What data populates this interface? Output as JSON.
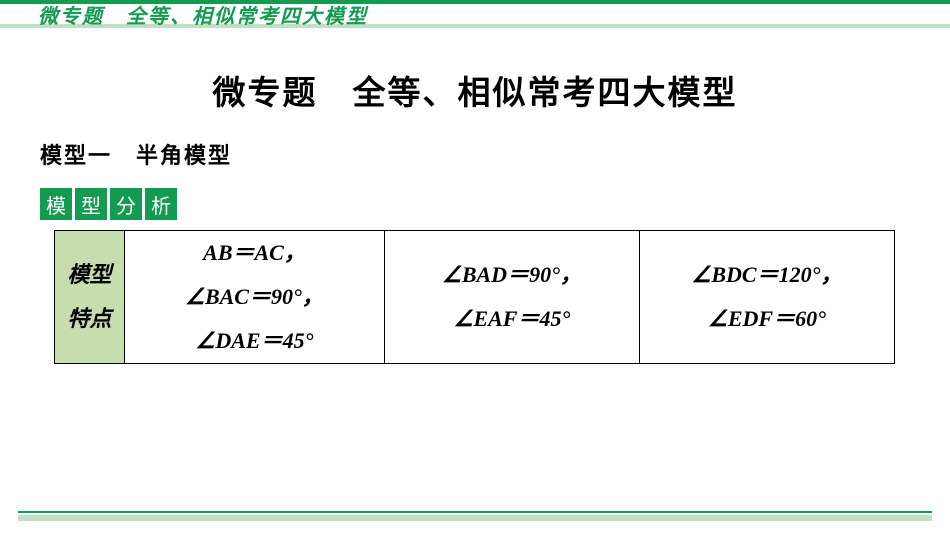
{
  "colors": {
    "accent": "#139b52",
    "accent_light": "#bfe0c1",
    "header_cell_bg": "#c7ddad",
    "badge_text": "#ffffff",
    "text": "#000000"
  },
  "top_title": "微专题　全等、相似常考四大模型",
  "main_title": "微专题　全等、相似常考四大模型",
  "subheading": "模型一　半角模型",
  "badge": {
    "c1": "模",
    "c2": "型",
    "c3": "分",
    "c4": "析"
  },
  "table": {
    "row_header_l1": "模型",
    "row_header_l2": "特点",
    "c1_l1": "AB＝AC，",
    "c1_l2": "∠BAC＝90°，",
    "c1_l3": "∠DAE＝45°",
    "c2_l1": "∠BAD＝90°，",
    "c2_l2": "∠EAF＝45°",
    "c3_l1": "∠BDC＝120°，",
    "c3_l2": "∠EDF＝60°"
  }
}
